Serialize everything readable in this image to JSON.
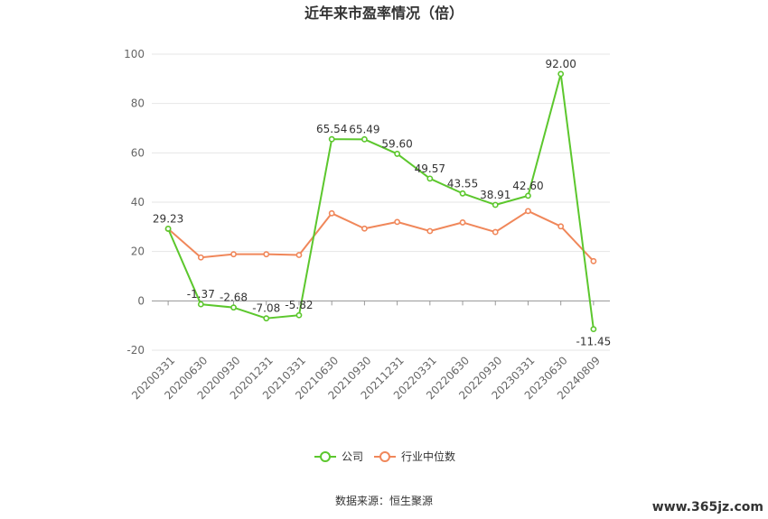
{
  "chart_data": {
    "type": "line",
    "title": "近年来市盈率情况（倍）",
    "categories": [
      "20200331",
      "20200630",
      "20200930",
      "20201231",
      "20210331",
      "20210630",
      "20210930",
      "20211231",
      "20220331",
      "20220630",
      "20220930",
      "20230331",
      "20230630",
      "20240809"
    ],
    "series": [
      {
        "name": "公司",
        "color": "#5cc72d",
        "values": [
          29.23,
          -1.37,
          -2.68,
          -7.08,
          -5.82,
          65.54,
          65.49,
          59.6,
          49.57,
          43.55,
          38.91,
          42.6,
          92.0,
          -11.45
        ],
        "labels": [
          "29.23",
          "-1.37",
          "-2.68",
          "-7.08",
          "-5.82",
          "65.54",
          "65.49",
          "59.60",
          "49.57",
          "43.55",
          "38.91",
          "42.60",
          "92.00",
          "-11.45"
        ]
      },
      {
        "name": "行业中位数",
        "color": "#f0875a",
        "values": [
          29.2,
          17.6,
          18.9,
          18.9,
          18.6,
          35.5,
          29.3,
          32.0,
          28.3,
          31.8,
          27.9,
          36.4,
          30.2,
          16.1
        ]
      }
    ],
    "yticks": [
      "100",
      "80",
      "60",
      "40",
      "20",
      "0",
      "-20"
    ],
    "ylim": [
      -20,
      100
    ],
    "grid": true,
    "legend": "bottom-center"
  },
  "footer": {
    "source": "数据来源：恒生聚源",
    "watermark": "www.365jz.com"
  }
}
